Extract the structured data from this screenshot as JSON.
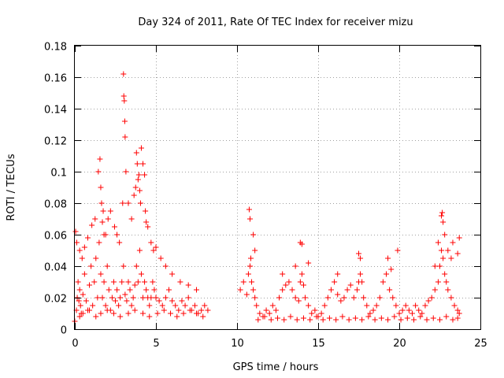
{
  "chart_data": {
    "type": "scatter",
    "title": "Day 324 of 2011, Rate Of TEC Index for receiver mizu",
    "xlabel": "GPS time / hours",
    "ylabel": "ROTI / TECUs",
    "xlim": [
      0,
      25
    ],
    "ylim": [
      0,
      0.18
    ],
    "xticks": [
      0,
      5,
      10,
      15,
      20,
      25
    ],
    "xtick_labels": [
      "0",
      "5",
      "10",
      "15",
      "20",
      "25"
    ],
    "yticks": [
      0,
      0.02,
      0.04,
      0.06,
      0.08,
      0.1,
      0.12,
      0.14,
      0.16,
      0.18
    ],
    "ytick_labels": [
      "0",
      "0.02",
      "0.04",
      "0.06",
      "0.08",
      "0.1",
      "0.12",
      "0.14",
      "0.16",
      "0.18"
    ],
    "grid": true,
    "marker": "+",
    "color": "#ff0000",
    "series": [
      {
        "name": "ROTI",
        "x": [
          0.0,
          0.1,
          0.15,
          0.2,
          0.25,
          0.3,
          0.35,
          0.4,
          0.5,
          0.6,
          0.7,
          0.8,
          0.9,
          1.0,
          1.1,
          1.2,
          1.3,
          1.4,
          1.5,
          1.6,
          1.7,
          1.8,
          1.9,
          2.0,
          2.1,
          2.2,
          2.3,
          2.4,
          2.5,
          2.6,
          2.7,
          2.8,
          2.9,
          3.0,
          3.1,
          3.2,
          3.3,
          3.4,
          3.5,
          3.6,
          3.7,
          3.8,
          3.9,
          4.0,
          4.1,
          4.2,
          4.3,
          4.4,
          4.5,
          4.6,
          4.7,
          4.8,
          4.9,
          5.0,
          5.2,
          5.4,
          5.6,
          5.8,
          6.0,
          6.2,
          6.4,
          6.6,
          6.8,
          7.0,
          7.2,
          7.4,
          7.6,
          7.8,
          8.0,
          8.2,
          0.05,
          0.12,
          0.3,
          0.45,
          0.6,
          0.8,
          1.05,
          1.25,
          1.45,
          1.55,
          1.6,
          1.65,
          1.7,
          1.75,
          1.8,
          1.9,
          2.05,
          2.2,
          2.45,
          2.6,
          2.75,
          2.95,
          3.0,
          3.02,
          3.05,
          3.08,
          3.1,
          3.15,
          3.3,
          3.5,
          3.65,
          3.75,
          3.8,
          3.85,
          3.9,
          3.95,
          4.0,
          4.05,
          4.1,
          4.2,
          4.3,
          4.35,
          4.4,
          4.5,
          4.7,
          4.85,
          5.0,
          5.3,
          5.6,
          6.0,
          6.5,
          7.0,
          7.5,
          10.2,
          10.4,
          10.6,
          10.7,
          10.8,
          10.85,
          10.9,
          11.0,
          11.1,
          11.2,
          11.4,
          11.6,
          11.8,
          12.0,
          12.2,
          12.4,
          12.6,
          12.8,
          13.0,
          13.2,
          13.4,
          13.6,
          13.8,
          13.9,
          14.0,
          14.1,
          14.2,
          14.4,
          14.6,
          14.8,
          15.0,
          15.2,
          15.4,
          15.6,
          15.8,
          16.0,
          16.2,
          16.4,
          16.6,
          16.8,
          17.0,
          17.2,
          17.4,
          17.5,
          17.6,
          17.7,
          17.8,
          18.0,
          18.2,
          18.4,
          18.6,
          18.8,
          19.0,
          19.2,
          19.4,
          19.6,
          19.8,
          20.0,
          20.2,
          20.4,
          20.6,
          20.8,
          21.0,
          21.2,
          21.4,
          21.6,
          21.8,
          22.0,
          22.2,
          22.4,
          22.5,
          22.6,
          22.7,
          22.8,
          22.9,
          23.0,
          23.2,
          23.4,
          23.6,
          23.7,
          10.75,
          10.8,
          11.0,
          11.1,
          12.8,
          13.6,
          13.9,
          14.0,
          14.4,
          16.2,
          17.5,
          17.6,
          19.3,
          19.5,
          19.9,
          22.2,
          22.4,
          22.6,
          22.65,
          22.7,
          22.8,
          23.0,
          23.2,
          23.3,
          23.6,
          23.7,
          0.3,
          0.5,
          0.9,
          1.3,
          1.6,
          2.0,
          2.4,
          2.8,
          3.3,
          3.7,
          4.2,
          4.6,
          5.1,
          5.5,
          5.9,
          6.3,
          6.7,
          7.1,
          7.5,
          7.9,
          11.3,
          11.7,
          12.1,
          12.5,
          12.9,
          13.3,
          13.7,
          14.1,
          14.5,
          14.9,
          15.3,
          15.7,
          16.1,
          16.5,
          16.9,
          17.3,
          17.7,
          18.1,
          18.5,
          18.9,
          19.3,
          19.7,
          20.1,
          20.5,
          20.9,
          21.3,
          21.7,
          22.1,
          22.5,
          22.9,
          23.3,
          23.6
        ],
        "y": [
          0.005,
          0.012,
          0.02,
          0.03,
          0.018,
          0.025,
          0.015,
          0.01,
          0.022,
          0.035,
          0.018,
          0.012,
          0.028,
          0.04,
          0.015,
          0.03,
          0.045,
          0.02,
          0.055,
          0.035,
          0.02,
          0.03,
          0.015,
          0.04,
          0.025,
          0.012,
          0.02,
          0.03,
          0.018,
          0.025,
          0.015,
          0.02,
          0.03,
          0.04,
          0.022,
          0.018,
          0.03,
          0.025,
          0.015,
          0.02,
          0.028,
          0.04,
          0.03,
          0.05,
          0.035,
          0.02,
          0.03,
          0.025,
          0.02,
          0.015,
          0.02,
          0.03,
          0.025,
          0.02,
          0.018,
          0.015,
          0.02,
          0.025,
          0.018,
          0.015,
          0.012,
          0.018,
          0.015,
          0.02,
          0.012,
          0.015,
          0.01,
          0.012,
          0.015,
          0.012,
          0.062,
          0.055,
          0.05,
          0.045,
          0.052,
          0.058,
          0.066,
          0.07,
          0.1,
          0.108,
          0.09,
          0.08,
          0.068,
          0.075,
          0.06,
          0.06,
          0.07,
          0.075,
          0.065,
          0.06,
          0.055,
          0.08,
          0.162,
          0.148,
          0.145,
          0.132,
          0.122,
          0.1,
          0.08,
          0.07,
          0.085,
          0.09,
          0.112,
          0.105,
          0.095,
          0.098,
          0.088,
          0.08,
          0.115,
          0.105,
          0.098,
          0.075,
          0.068,
          0.065,
          0.055,
          0.05,
          0.052,
          0.045,
          0.04,
          0.035,
          0.03,
          0.028,
          0.025,
          0.025,
          0.03,
          0.022,
          0.035,
          0.04,
          0.045,
          0.03,
          0.025,
          0.02,
          0.015,
          0.01,
          0.008,
          0.012,
          0.01,
          0.015,
          0.012,
          0.02,
          0.025,
          0.028,
          0.03,
          0.025,
          0.02,
          0.018,
          0.03,
          0.035,
          0.028,
          0.02,
          0.015,
          0.01,
          0.012,
          0.008,
          0.01,
          0.015,
          0.02,
          0.025,
          0.03,
          0.022,
          0.018,
          0.02,
          0.025,
          0.028,
          0.02,
          0.025,
          0.03,
          0.035,
          0.03,
          0.02,
          0.015,
          0.01,
          0.012,
          0.015,
          0.02,
          0.03,
          0.035,
          0.025,
          0.02,
          0.015,
          0.01,
          0.012,
          0.015,
          0.012,
          0.01,
          0.015,
          0.012,
          0.01,
          0.015,
          0.018,
          0.02,
          0.025,
          0.03,
          0.04,
          0.05,
          0.045,
          0.035,
          0.03,
          0.025,
          0.02,
          0.015,
          0.012,
          0.01,
          0.076,
          0.07,
          0.06,
          0.05,
          0.035,
          0.04,
          0.055,
          0.054,
          0.042,
          0.035,
          0.048,
          0.045,
          0.045,
          0.038,
          0.05,
          0.04,
          0.055,
          0.072,
          0.074,
          0.068,
          0.06,
          0.05,
          0.045,
          0.055,
          0.048,
          0.058,
          0.008,
          0.01,
          0.012,
          0.008,
          0.01,
          0.012,
          0.01,
          0.008,
          0.01,
          0.012,
          0.01,
          0.008,
          0.01,
          0.012,
          0.01,
          0.008,
          0.01,
          0.012,
          0.01,
          0.008,
          0.006,
          0.008,
          0.006,
          0.007,
          0.006,
          0.008,
          0.006,
          0.007,
          0.006,
          0.008,
          0.006,
          0.007,
          0.006,
          0.008,
          0.006,
          0.007,
          0.006,
          0.008,
          0.006,
          0.007,
          0.006,
          0.008,
          0.006,
          0.007,
          0.006,
          0.008,
          0.006,
          0.007,
          0.006,
          0.008,
          0.006,
          0.007
        ]
      }
    ]
  }
}
